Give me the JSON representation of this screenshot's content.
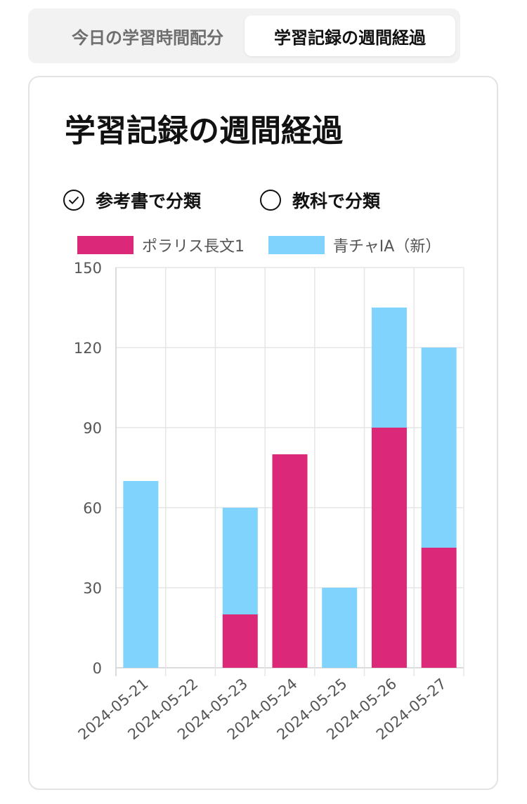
{
  "tabs": [
    {
      "label": "今日の学習時間配分",
      "active": false
    },
    {
      "label": "学習記録の週間経過",
      "active": true
    }
  ],
  "card": {
    "title": "学習記録の週間経過"
  },
  "filter": {
    "options": [
      {
        "label": "参考書で分類",
        "selected": true
      },
      {
        "label": "教科で分類",
        "selected": false
      }
    ]
  },
  "colors": {
    "series1": "#dc2878",
    "series2": "#80d3fc",
    "grid": "#e6e6e6",
    "axis": "#cfcfcf",
    "tick": "#555555"
  },
  "chart_data": {
    "type": "bar",
    "stacked": true,
    "categories": [
      "2024-05-21",
      "2024-05-22",
      "2024-05-23",
      "2024-05-24",
      "2024-05-25",
      "2024-05-26",
      "2024-05-27"
    ],
    "series": [
      {
        "name": "ポラリス長文1",
        "values": [
          0,
          0,
          20,
          80,
          0,
          90,
          45
        ]
      },
      {
        "name": "青チャIA（新）",
        "values": [
          70,
          0,
          40,
          0,
          30,
          45,
          75
        ]
      }
    ],
    "ylim": [
      0,
      150
    ],
    "yticks": [
      0,
      30,
      60,
      90,
      120,
      150
    ],
    "xlabel": "",
    "ylabel": "",
    "legend": "top",
    "grid": true
  }
}
